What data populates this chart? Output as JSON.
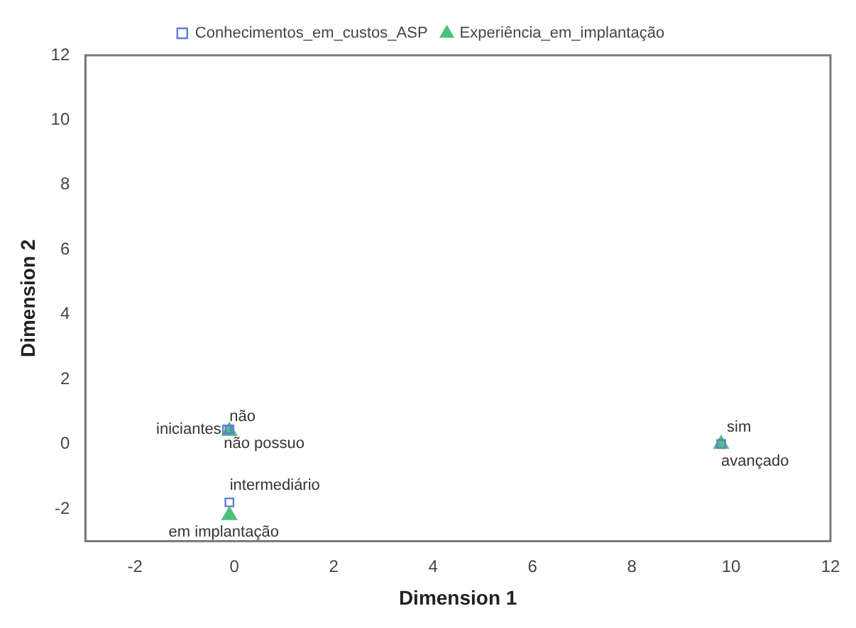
{
  "chart_data": {
    "type": "scatter",
    "xlabel": "Dimension 1",
    "ylabel": "Dimension 2",
    "xlim": [
      -3,
      12
    ],
    "ylim": [
      -3,
      12
    ],
    "xticks": [
      -2,
      0,
      2,
      4,
      6,
      8,
      10,
      12
    ],
    "yticks": [
      -2,
      0,
      2,
      4,
      6,
      8,
      10,
      12
    ],
    "grid": false,
    "legend": "top",
    "series": [
      {
        "name": "Conhecimentos_em_custos_ASP",
        "color": "#5b7fd6",
        "marker": "square",
        "x": [
          -0.1,
          -0.15,
          -0.1,
          9.8
        ],
        "values": [
          0.45,
          0.45,
          -1.8,
          0.0
        ]
      },
      {
        "name": "Experiência_em_implantação",
        "color": "#4cc17a",
        "marker": "triangle",
        "x": [
          -0.1,
          9.8,
          -0.1
        ],
        "values": [
          0.4,
          0.0,
          -2.2
        ]
      }
    ],
    "annotations": [
      {
        "text": "não possuo",
        "x": -0.1,
        "y": 0.45
      },
      {
        "text": "iniciantes",
        "x": -0.15,
        "y": 0.45
      },
      {
        "text": "intermediário",
        "x": -0.1,
        "y": -1.8
      },
      {
        "text": "avançado",
        "x": 9.8,
        "y": 0.0
      },
      {
        "text": "não",
        "x": -0.1,
        "y": 0.4
      },
      {
        "text": "sim",
        "x": 9.8,
        "y": 0.0
      },
      {
        "text": "em implantação",
        "x": -0.1,
        "y": -2.2
      }
    ]
  }
}
